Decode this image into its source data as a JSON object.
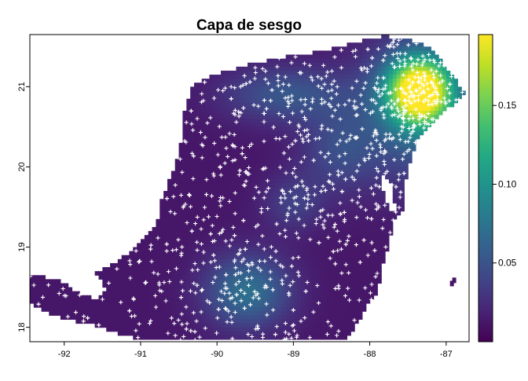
{
  "chart_data": {
    "type": "heatmap",
    "title": "Capa de sesgo",
    "xlabel": "",
    "ylabel": "",
    "xlim": [
      -92.45,
      -86.7
    ],
    "ylim": [
      17.82,
      21.65
    ],
    "x_ticks": [
      -92,
      -91,
      -90,
      -89,
      -88,
      -87
    ],
    "x_tick_labels": [
      "-92",
      "-91",
      "-90",
      "-89",
      "-88",
      "-87"
    ],
    "y_ticks": [
      18,
      19,
      20,
      21
    ],
    "y_tick_labels": [
      "18",
      "19",
      "20",
      "21"
    ],
    "colorbar": {
      "colormap": "viridis",
      "range": [
        0.0,
        0.195
      ],
      "ticks": [
        0.05,
        0.1,
        0.15
      ],
      "tick_labels": [
        "0.05",
        "0.10",
        "0.15"
      ]
    },
    "colors": {
      "viridis_low": "#440154",
      "viridis_mid": "#21908c",
      "viridis_high": "#fde725",
      "point_marker": "#ffffff"
    },
    "points_marker": "cross",
    "grid": false,
    "legend_placement": "right"
  }
}
